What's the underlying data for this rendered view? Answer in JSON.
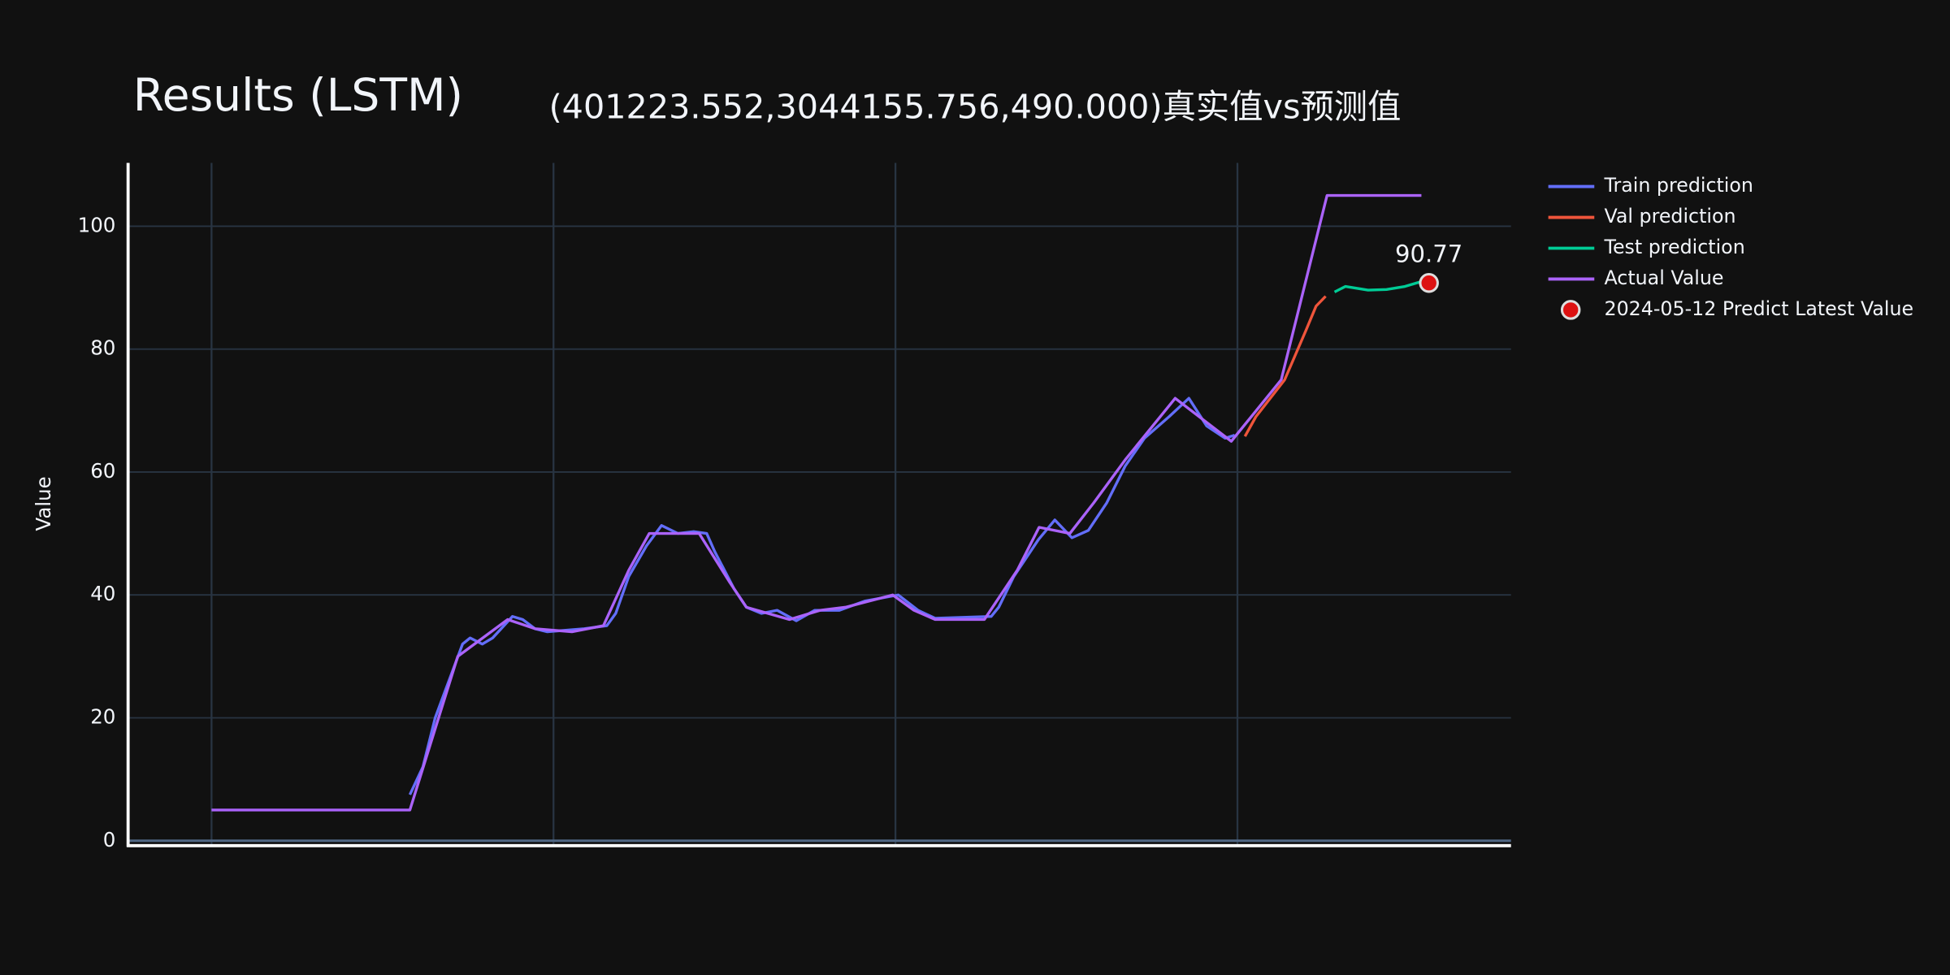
{
  "chart_data": {
    "type": "line",
    "title": "Results (LSTM)",
    "subtitle": "(401223.552,3044155.756,490.000)真实值vs预测值",
    "y_label": "Value",
    "xlim": [
      -12.2,
      190
    ],
    "xticks": [
      0,
      50,
      100,
      150
    ],
    "ylim": [
      -0.8,
      110.3
    ],
    "yticks": [
      0,
      20,
      40,
      60,
      80,
      100
    ],
    "grid": true,
    "legend_position": "right",
    "series": [
      {
        "name": "Train prediction",
        "color": "#636efa",
        "mode": "lines",
        "x": [
          29,
          30.9,
          32.7,
          36.7,
          37.8,
          39.6,
          41.1,
          44,
          45.5,
          47.3,
          49.1,
          54.5,
          57.8,
          59.1,
          61,
          63.6,
          65.8,
          68.2,
          70.5,
          72.4,
          73.6,
          76.4,
          78.2,
          80.4,
          82.7,
          85.5,
          88.2,
          91.8,
          95.5,
          100.4,
          103.3,
          105.8,
          114,
          115.1,
          117.3,
          120.9,
          123.3,
          125.8,
          128.2,
          130.9,
          133.6,
          136.4,
          140,
          142.9,
          145.5,
          148.2,
          149.6
        ],
        "values": [
          7.5,
          12,
          20,
          32,
          33,
          32,
          33,
          36.5,
          36,
          34.5,
          34,
          34.5,
          35,
          37,
          43,
          48,
          51.3,
          50,
          50.3,
          50,
          47,
          41,
          38,
          37,
          37.5,
          35.8,
          37.5,
          37.5,
          39,
          40,
          37.5,
          36.2,
          36.5,
          38,
          43,
          49,
          52.2,
          49.3,
          50.5,
          55,
          61,
          65.5,
          69,
          72,
          67.5,
          65.5,
          66
        ]
      },
      {
        "name": "Val prediction",
        "color": "#ef553b",
        "mode": "lines",
        "x": [
          151.1,
          152.7,
          156.9,
          160,
          161.5,
          162.9
        ],
        "values": [
          65.8,
          69,
          75,
          83,
          87,
          88.6
        ]
      },
      {
        "name": "Test prediction",
        "color": "#00cc96",
        "mode": "lines",
        "x": [
          164.2,
          165.8,
          169.1,
          171.8,
          174.5,
          176.9
        ],
        "values": [
          89.3,
          90.2,
          89.6,
          89.7,
          90.2,
          91
        ]
      },
      {
        "name": "Actual Value",
        "color": "#ab63fa",
        "mode": "lines",
        "x": [
          0,
          29,
          36,
          43.3,
          47.3,
          52.7,
          57.3,
          61,
          64,
          71.3,
          75.8,
          78.2,
          84.5,
          89,
          92.7,
          99.6,
          102.7,
          105.8,
          113,
          117.8,
          121,
          125.5,
          129,
          133.6,
          140.9,
          149.1,
          156.4,
          163.1,
          176.9
        ],
        "values": [
          5,
          5,
          30,
          36,
          34.5,
          34,
          35,
          44,
          50,
          50,
          42,
          38,
          36,
          37.5,
          38,
          40,
          37.5,
          36,
          36,
          44,
          51,
          50,
          55,
          62,
          72,
          65,
          75,
          105,
          105
        ]
      },
      {
        "name": "2024-05-12 Predict Latest Value",
        "color": "#dd1111",
        "mode": "markers",
        "x": [
          178
        ],
        "values": [
          90.77
        ]
      }
    ]
  }
}
